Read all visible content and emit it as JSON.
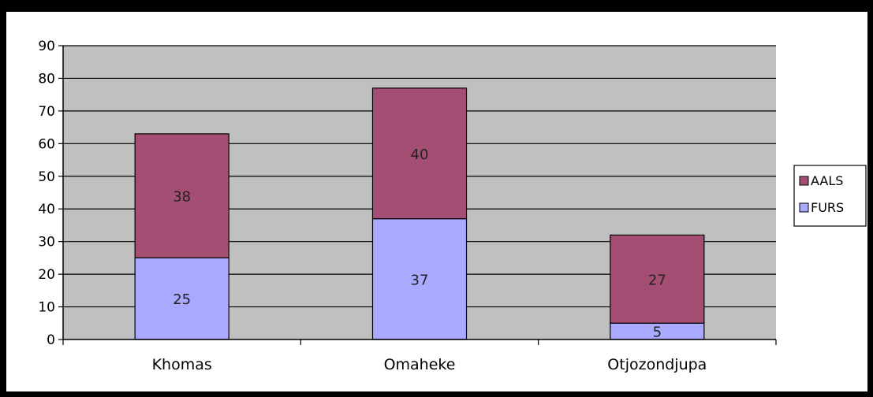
{
  "chart_data": {
    "type": "bar",
    "stacked": true,
    "title": "",
    "xlabel": "",
    "ylabel": "",
    "categories": [
      "Khomas",
      "Omaheke",
      "Otjozondjupa"
    ],
    "series": [
      {
        "name": "FURS",
        "values": [
          25,
          37,
          5
        ],
        "color": "#a9aaff"
      },
      {
        "name": "AALS",
        "values": [
          38,
          40,
          27
        ],
        "color": "#a44e74"
      }
    ],
    "bar_labels": [
      [
        "25",
        "37",
        "5"
      ],
      [
        "38",
        "40",
        "27"
      ]
    ],
    "ylim": [
      0,
      90
    ],
    "yticks": [
      0,
      10,
      20,
      30,
      40,
      50,
      60,
      70,
      80,
      90
    ],
    "grid": true,
    "plot_background": "#c0c0c0",
    "legend_position": "right",
    "legend_order": [
      "AALS",
      "FURS"
    ]
  }
}
